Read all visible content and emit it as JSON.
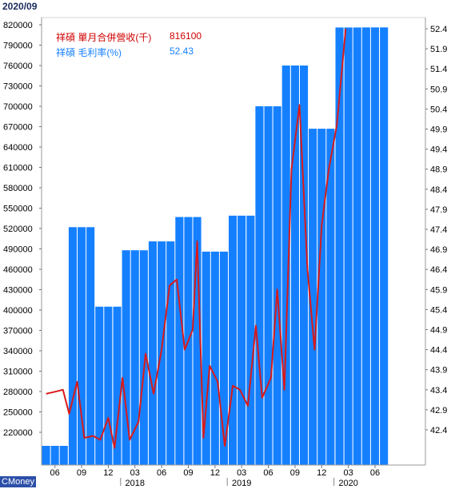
{
  "period": "2020/09",
  "brand": "CMoney",
  "colors": {
    "bar": "#1580ff",
    "bar_stroke": "#1a6fe0",
    "line": "#d81a1a",
    "axis": "#555555",
    "grid": "#e6e6e6"
  },
  "legend": {
    "revenue_label": "祥碩 單月合併營收(千)",
    "revenue_value": "816100",
    "margin_label": "祥碩 毛利率(%)",
    "margin_value": "52.43"
  },
  "chart_data": {
    "type": "bar",
    "left_axis": {
      "ylim": [
        190000,
        830000
      ],
      "ticks": [
        "820000",
        "790000",
        "760000",
        "730000",
        "700000",
        "670000",
        "640000",
        "610000",
        "580000",
        "550000",
        "520000",
        "490000",
        "460000",
        "430000",
        "400000",
        "370000",
        "340000",
        "310000",
        "280000",
        "250000",
        "220000"
      ]
    },
    "right_axis": {
      "ylim": [
        41.8,
        52.6
      ],
      "ticks": [
        "52.4",
        "51.9",
        "51.4",
        "50.9",
        "50.4",
        "49.9",
        "49.4",
        "48.9",
        "48.4",
        "47.9",
        "47.4",
        "46.9",
        "46.4",
        "45.9",
        "45.4",
        "44.9",
        "44.4",
        "43.9",
        "43.4",
        "42.9",
        "42.4"
      ]
    },
    "x_tick_labels": [
      "06",
      "09",
      "12",
      "03",
      "06",
      "09",
      "12",
      "03",
      "06",
      "09",
      "12",
      "03",
      "06"
    ],
    "x_year_labels": [
      "2018",
      "2019",
      "2020"
    ],
    "series": [
      {
        "name": "祥碩 單月合併營收(千)",
        "kind": "bar",
        "values": [
          200000,
          200000,
          200000,
          522000,
          522000,
          522000,
          405000,
          405000,
          405000,
          488000,
          488000,
          488000,
          501000,
          501000,
          501000,
          537000,
          537000,
          537000,
          486000,
          486000,
          486000,
          539000,
          539000,
          539000,
          700000,
          700000,
          700000,
          760000,
          760000,
          760000,
          667000,
          667000,
          667000,
          816000,
          816000,
          816000,
          816100,
          816100,
          816100
        ]
      },
      {
        "name": "祥碩 毛利率(%)",
        "kind": "line",
        "points": [
          [
            0,
            43.3
          ],
          [
            1.0,
            43.35
          ],
          [
            1.9,
            43.4
          ],
          [
            2.6,
            42.8
          ],
          [
            3.5,
            43.6
          ],
          [
            4.3,
            42.2
          ],
          [
            5.3,
            42.25
          ],
          [
            6.1,
            42.15
          ],
          [
            7.0,
            42.7
          ],
          [
            7.7,
            41.95
          ],
          [
            8.6,
            43.7
          ],
          [
            9.4,
            42.15
          ],
          [
            10.4,
            42.6
          ],
          [
            11.2,
            44.3
          ],
          [
            12.1,
            43.3
          ],
          [
            13.0,
            44.4
          ],
          [
            13.9,
            46.0
          ],
          [
            14.7,
            46.15
          ],
          [
            15.6,
            44.4
          ],
          [
            16.5,
            44.9
          ],
          [
            17.0,
            47.1
          ],
          [
            17.7,
            42.2
          ],
          [
            18.4,
            44.0
          ],
          [
            19.3,
            43.6
          ],
          [
            20.1,
            42.0
          ],
          [
            21.0,
            43.5
          ],
          [
            21.8,
            43.4
          ],
          [
            22.7,
            43.0
          ],
          [
            23.6,
            45.0
          ],
          [
            24.3,
            43.2
          ],
          [
            25.3,
            43.7
          ],
          [
            26.0,
            45.9
          ],
          [
            26.8,
            43.4
          ],
          [
            27.6,
            48.9
          ],
          [
            28.5,
            50.5
          ],
          [
            29.4,
            46.4
          ],
          [
            30.2,
            44.4
          ],
          [
            31.0,
            47.5
          ],
          [
            31.8,
            48.9
          ],
          [
            32.7,
            50.0
          ],
          [
            33.7,
            52.4
          ]
        ]
      }
    ]
  }
}
